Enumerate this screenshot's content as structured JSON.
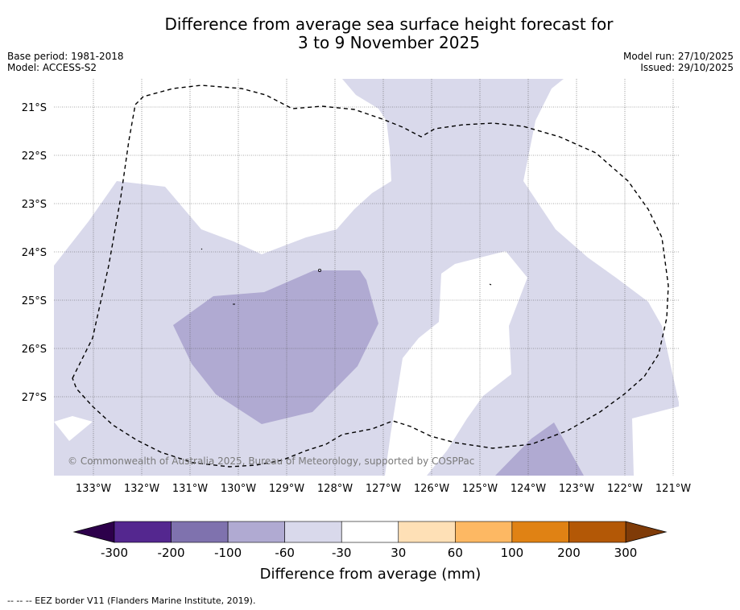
{
  "title": {
    "line1": "Difference from average sea surface height forecast for",
    "line2": "3 to 9 November 2025"
  },
  "meta_left": {
    "base_period": "Base period: 1981-2018",
    "model": "Model: ACCESS-S2"
  },
  "meta_right": {
    "model_run": "Model run: 27/10/2025",
    "issued": "Issued: 29/10/2025"
  },
  "map": {
    "lat_labels": [
      "21°S",
      "22°S",
      "23°S",
      "24°S",
      "25°S",
      "26°S",
      "27°S"
    ],
    "lon_labels": [
      "133°W",
      "132°W",
      "131°W",
      "130°W",
      "129°W",
      "128°W",
      "127°W",
      "126°W",
      "125°W",
      "124°W",
      "123°W",
      "122°W",
      "121°W"
    ],
    "copyright": "© Commonwealth of Australia 2025, Bureau of Meteorology, supported by COSPPac",
    "fill_colors": {
      "-60_to_-30": "#d9d9eb",
      "-100_to_-60": "#b0aad2",
      "-200_to_-100": "#7f72ae"
    }
  },
  "colorbar": {
    "label": "Difference from average (mm)",
    "ticks": [
      "-300",
      "-200",
      "-100",
      "-60",
      "-30",
      "30",
      "60",
      "100",
      "200",
      "300"
    ],
    "colors": [
      "#54278f",
      "#7f72ae",
      "#b0aad2",
      "#d9d9eb",
      "#ffffff",
      "#fee0b6",
      "#fdb863",
      "#e08214",
      "#b35806"
    ],
    "extend_low_color": "#2d004b",
    "extend_high_color": "#7f3b08"
  },
  "footer": {
    "legend": "--  --  -- EEZ border V11 (Flanders Marine Institute, 2019)."
  }
}
